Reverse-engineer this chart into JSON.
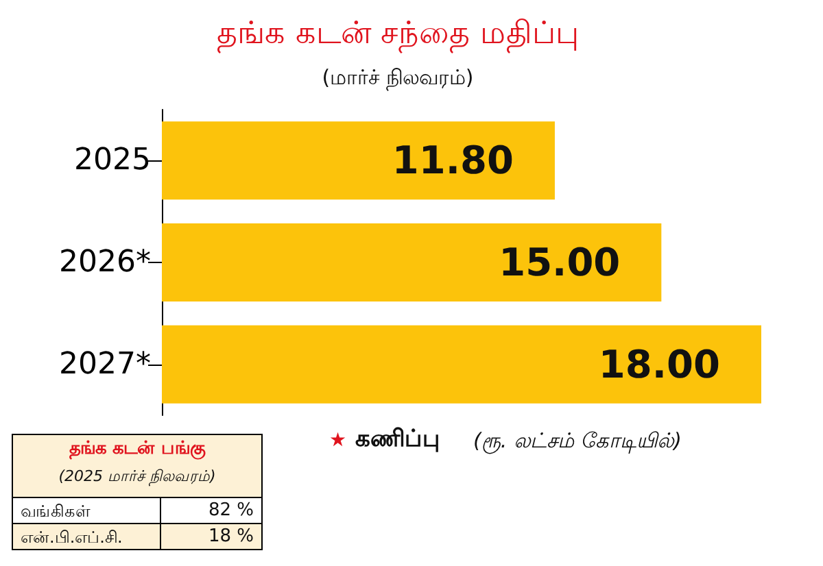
{
  "chart_data": [
    {
      "type": "bar",
      "orientation": "horizontal",
      "title": "தங்க கடன் சந்தை மதிப்பு",
      "subtitle": "(மார்ச் நிலவரம்)",
      "categories": [
        "2025",
        "2026*",
        "2027*"
      ],
      "values": [
        11.8,
        15.0,
        18.0
      ],
      "value_labels": [
        "11.80",
        "15.00",
        "18.00"
      ],
      "color": "#fcc30b",
      "tick_labels": "y",
      "annotations": [
        "★ கணிப்பு",
        "(ரூ. லட்சம் கோடியில்)"
      ]
    },
    {
      "type": "other",
      "title": "தங்க கடன் பங்கு",
      "subtitle": "(2025 மார்ச் நிலவரம்)",
      "categories": [
        "வங்கிகள்",
        "என்.பி.எப்.சி."
      ],
      "value_labels": [
        "82 %",
        "18 %"
      ]
    }
  ]
}
